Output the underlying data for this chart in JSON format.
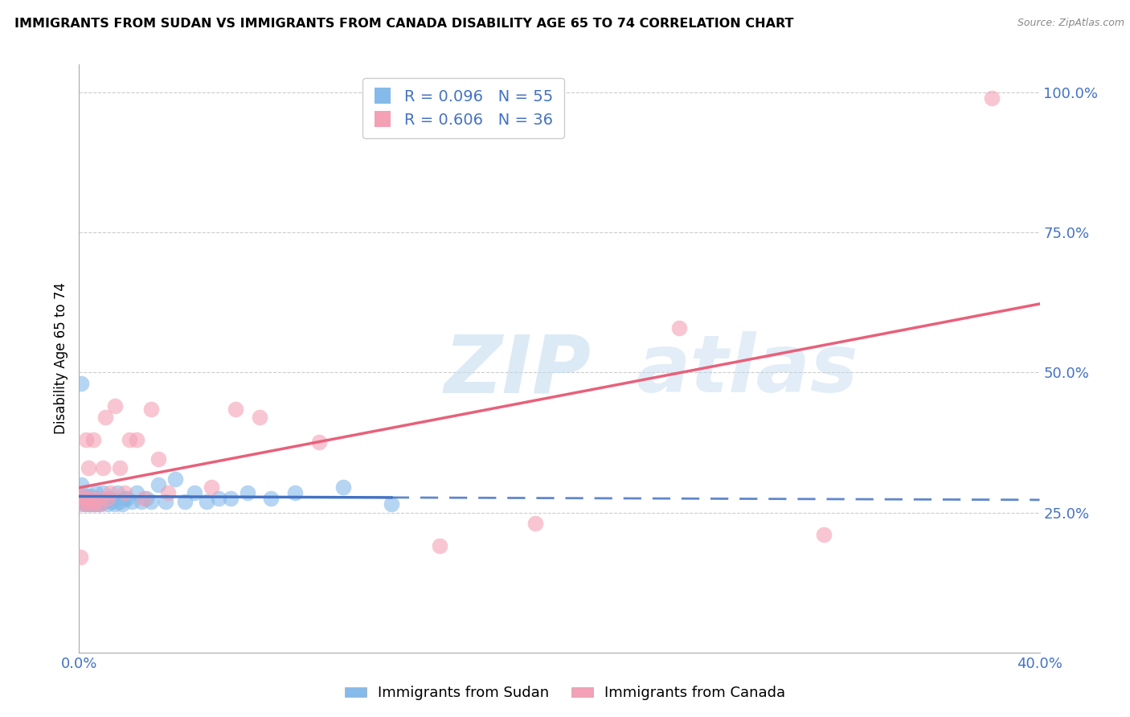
{
  "title": "IMMIGRANTS FROM SUDAN VS IMMIGRANTS FROM CANADA DISABILITY AGE 65 TO 74 CORRELATION CHART",
  "source": "Source: ZipAtlas.com",
  "ylabel": "Disability Age 65 to 74",
  "legend1_label": "Immigrants from Sudan",
  "legend2_label": "Immigrants from Canada",
  "r1": "0.096",
  "n1": "55",
  "r2": "0.606",
  "n2": "36",
  "color_blue": "#85BAEA",
  "color_pink": "#F4A0B5",
  "color_blue_line": "#4472C4",
  "color_pink_line": "#E8607A",
  "color_text_blue": "#4472C4",
  "sudan_x": [
    0.0005,
    0.001,
    0.001,
    0.0015,
    0.002,
    0.002,
    0.0025,
    0.003,
    0.003,
    0.003,
    0.004,
    0.004,
    0.004,
    0.005,
    0.005,
    0.005,
    0.006,
    0.006,
    0.006,
    0.007,
    0.007,
    0.008,
    0.008,
    0.009,
    0.009,
    0.01,
    0.01,
    0.011,
    0.012,
    0.013,
    0.014,
    0.015,
    0.016,
    0.017,
    0.018,
    0.019,
    0.02,
    0.022,
    0.024,
    0.026,
    0.028,
    0.03,
    0.033,
    0.036,
    0.04,
    0.044,
    0.048,
    0.053,
    0.058,
    0.063,
    0.07,
    0.08,
    0.09,
    0.11,
    0.13
  ],
  "sudan_y": [
    0.27,
    0.48,
    0.3,
    0.275,
    0.265,
    0.28,
    0.27,
    0.27,
    0.265,
    0.28,
    0.275,
    0.265,
    0.27,
    0.27,
    0.265,
    0.28,
    0.265,
    0.27,
    0.275,
    0.265,
    0.285,
    0.27,
    0.265,
    0.275,
    0.265,
    0.285,
    0.27,
    0.27,
    0.265,
    0.275,
    0.27,
    0.265,
    0.285,
    0.27,
    0.265,
    0.275,
    0.275,
    0.27,
    0.285,
    0.27,
    0.275,
    0.27,
    0.3,
    0.27,
    0.31,
    0.27,
    0.285,
    0.27,
    0.275,
    0.275,
    0.285,
    0.275,
    0.285,
    0.295,
    0.265
  ],
  "canada_x": [
    0.0005,
    0.001,
    0.0015,
    0.002,
    0.003,
    0.003,
    0.004,
    0.004,
    0.005,
    0.006,
    0.006,
    0.007,
    0.008,
    0.009,
    0.01,
    0.011,
    0.012,
    0.013,
    0.015,
    0.017,
    0.019,
    0.021,
    0.024,
    0.027,
    0.03,
    0.033,
    0.037,
    0.055,
    0.065,
    0.075,
    0.1,
    0.15,
    0.19,
    0.25,
    0.31,
    0.38
  ],
  "canada_y": [
    0.17,
    0.265,
    0.275,
    0.28,
    0.27,
    0.38,
    0.33,
    0.265,
    0.275,
    0.265,
    0.38,
    0.27,
    0.275,
    0.265,
    0.33,
    0.42,
    0.275,
    0.285,
    0.44,
    0.33,
    0.285,
    0.38,
    0.38,
    0.275,
    0.435,
    0.345,
    0.285,
    0.295,
    0.435,
    0.42,
    0.375,
    0.19,
    0.23,
    0.58,
    0.21,
    0.99
  ],
  "xmin": 0.0,
  "xmax": 0.4,
  "ymin": 0.0,
  "ymax": 1.05,
  "ytick_vals": [
    0.0,
    0.25,
    0.5,
    0.75,
    1.0
  ],
  "ytick_labels": [
    "",
    "25.0%",
    "50.0%",
    "75.0%",
    "100.0%"
  ],
  "xtick_vals": [
    0.0,
    0.08,
    0.16,
    0.24,
    0.32,
    0.4
  ],
  "xtick_labels": [
    "0.0%",
    "",
    "",
    "",
    "",
    "40.0%"
  ]
}
